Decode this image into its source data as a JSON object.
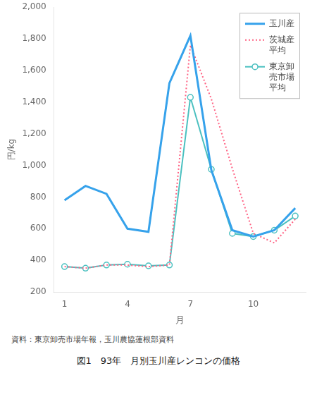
{
  "chart_data": {
    "type": "line",
    "title": "図1　93年　月別玉川産レンコンの価格",
    "annotations": [
      "資料：東京卸売市場年報，玉川農協蓮根部資料"
    ],
    "xlabel": "月",
    "ylabel": "円/kg",
    "x": [
      1,
      2,
      3,
      4,
      5,
      6,
      7,
      8,
      9,
      10,
      11,
      12
    ],
    "xlim": [
      0.5,
      12.5
    ],
    "xticks": [
      1,
      4,
      7,
      10
    ],
    "ylim": [
      200,
      2000
    ],
    "yticks": [
      200,
      400,
      600,
      800,
      {
        "value": 1000,
        "label": "1,000"
      },
      {
        "value": 1200,
        "label": "1,200"
      },
      {
        "value": 1400,
        "label": "1,400"
      },
      {
        "value": 1600,
        "label": "1,600"
      },
      {
        "value": 1800,
        "label": "1,800"
      },
      {
        "value": 2000,
        "label": "2,000"
      }
    ],
    "grid": false,
    "legend": "upper right",
    "series": [
      {
        "name": "玉川産",
        "values": [
          780,
          870,
          820,
          600,
          580,
          1520,
          1820,
          970,
          590,
          550,
          590,
          730
        ],
        "line_style": "solid",
        "marker": "none"
      },
      {
        "name": "茨城産\n平均",
        "values": [
          360,
          350,
          370,
          370,
          360,
          370,
          1760,
          1420,
          980,
          570,
          510,
          660
        ],
        "line_style": "dotted",
        "marker": "none"
      },
      {
        "name": "東京卸\n売市場\n平均",
        "values": [
          360,
          350,
          370,
          375,
          365,
          370,
          1430,
          975,
          570,
          550,
          590,
          680
        ],
        "line_style": "solid",
        "marker": "circle"
      }
    ]
  }
}
